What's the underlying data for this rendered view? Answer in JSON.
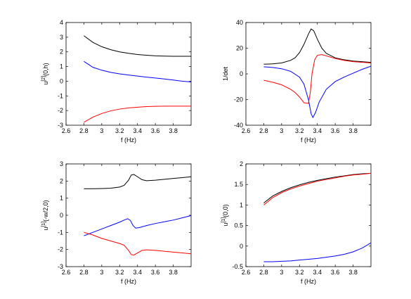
{
  "chart_data": [
    {
      "type": "line",
      "xlabel": "f (Hz)",
      "ylabel": "u^{[2]}(0,h)",
      "xlim": [
        2.6,
        4.0
      ],
      "ylim": [
        -3,
        4
      ],
      "xticks": [
        "2.6",
        "2.8",
        "3",
        "3.2",
        "3.4",
        "3.6",
        "3.8"
      ],
      "yticks": [
        "-3",
        "-2",
        "-1",
        "0",
        "1",
        "2",
        "3",
        "4"
      ],
      "series": [
        {
          "color": "#000000",
          "x": [
            2.8,
            2.9,
            3.0,
            3.1,
            3.2,
            3.3,
            3.4,
            3.5,
            3.6,
            3.7,
            3.8,
            3.9,
            4.0
          ],
          "y": [
            3.1,
            2.65,
            2.35,
            2.15,
            2.0,
            1.9,
            1.82,
            1.77,
            1.73,
            1.71,
            1.7,
            1.7,
            1.7
          ]
        },
        {
          "color": "#0000ff",
          "x": [
            2.8,
            2.9,
            3.0,
            3.1,
            3.2,
            3.3,
            3.4,
            3.5,
            3.6,
            3.7,
            3.8,
            3.9,
            4.0
          ],
          "y": [
            1.35,
            0.95,
            0.75,
            0.6,
            0.5,
            0.42,
            0.35,
            0.28,
            0.22,
            0.15,
            0.08,
            0.0,
            -0.05
          ]
        },
        {
          "color": "#ff0000",
          "x": [
            2.8,
            2.9,
            3.0,
            3.1,
            3.2,
            3.3,
            3.4,
            3.5,
            3.6,
            3.7,
            3.8,
            3.9,
            4.0
          ],
          "y": [
            -2.8,
            -2.45,
            -2.2,
            -2.02,
            -1.9,
            -1.82,
            -1.77,
            -1.73,
            -1.71,
            -1.7,
            -1.7,
            -1.7,
            -1.7
          ]
        }
      ]
    },
    {
      "type": "line",
      "xlabel": "f (Hz)",
      "ylabel": "1/det",
      "xlim": [
        2.6,
        4.0
      ],
      "ylim": [
        -40,
        40
      ],
      "xticks": [
        "2.6",
        "2.8",
        "3",
        "3.2",
        "3.4",
        "3.6",
        "3.8"
      ],
      "yticks": [
        "-40",
        "-20",
        "0",
        "20",
        "40"
      ],
      "series": [
        {
          "color": "#000000",
          "x": [
            2.8,
            2.9,
            3.0,
            3.1,
            3.15,
            3.2,
            3.25,
            3.3,
            3.33,
            3.36,
            3.4,
            3.45,
            3.5,
            3.6,
            3.7,
            3.8,
            4.0
          ],
          "y": [
            7.5,
            7.8,
            8.5,
            10.5,
            12.5,
            16.5,
            23.0,
            31.0,
            35.0,
            33.5,
            27.0,
            20.0,
            16.0,
            12.5,
            11.0,
            10.0,
            9.0
          ]
        },
        {
          "color": "#0000ff",
          "x": [
            2.8,
            2.9,
            3.0,
            3.1,
            3.2,
            3.25,
            3.3,
            3.33,
            3.35,
            3.38,
            3.42,
            3.5,
            3.6,
            3.7,
            3.8,
            3.9,
            4.0
          ],
          "y": [
            5.5,
            5.0,
            4.0,
            2.0,
            -2.5,
            -8.0,
            -20.0,
            -31.0,
            -34.0,
            -30.0,
            -22.0,
            -12.0,
            -6.0,
            -2.5,
            0.5,
            3.5,
            6.0
          ]
        },
        {
          "color": "#ff0000",
          "x": [
            2.8,
            2.9,
            3.0,
            3.1,
            3.15,
            3.2,
            3.25,
            3.3,
            3.32,
            3.34,
            3.37,
            3.4,
            3.45,
            3.5,
            3.6,
            3.7,
            3.8,
            4.0
          ],
          "y": [
            -5.0,
            -6.5,
            -8.5,
            -12.0,
            -14.5,
            -18.0,
            -22.5,
            -23.0,
            -15.0,
            0.0,
            11.0,
            14.5,
            15.0,
            14.0,
            12.0,
            10.5,
            9.5,
            8.5
          ]
        }
      ]
    },
    {
      "type": "line",
      "xlabel": "f (Hz)",
      "ylabel": "u^{[1]}(-w/2,0)",
      "xlim": [
        2.6,
        4.0
      ],
      "ylim": [
        -3,
        3
      ],
      "xticks": [
        "2.6",
        "2.8",
        "3",
        "3.2",
        "3.4",
        "3.6",
        "3.8"
      ],
      "yticks": [
        "-3",
        "-2",
        "-1",
        "0",
        "1",
        "2",
        "3"
      ],
      "series": [
        {
          "color": "#000000",
          "x": [
            2.8,
            2.9,
            3.0,
            3.1,
            3.2,
            3.25,
            3.3,
            3.33,
            3.36,
            3.4,
            3.45,
            3.5,
            3.6,
            3.7,
            3.8,
            3.9,
            4.0
          ],
          "y": [
            1.55,
            1.55,
            1.56,
            1.58,
            1.65,
            1.75,
            2.05,
            2.35,
            2.38,
            2.25,
            2.08,
            2.02,
            2.05,
            2.1,
            2.15,
            2.2,
            2.25
          ]
        },
        {
          "color": "#0000ff",
          "x": [
            2.8,
            2.9,
            3.0,
            3.1,
            3.2,
            3.25,
            3.29,
            3.32,
            3.35,
            3.38,
            3.42,
            3.5,
            3.6,
            3.7,
            3.8,
            3.9,
            4.0
          ],
          "y": [
            -1.2,
            -1.0,
            -0.8,
            -0.6,
            -0.4,
            -0.28,
            -0.2,
            -0.3,
            -0.6,
            -0.75,
            -0.72,
            -0.6,
            -0.48,
            -0.38,
            -0.28,
            -0.15,
            -0.02
          ]
        },
        {
          "color": "#ff0000",
          "x": [
            2.8,
            2.9,
            3.0,
            3.1,
            3.2,
            3.25,
            3.3,
            3.33,
            3.36,
            3.4,
            3.45,
            3.5,
            3.6,
            3.7,
            3.8,
            3.9,
            4.0
          ],
          "y": [
            -1.0,
            -1.15,
            -1.35,
            -1.5,
            -1.65,
            -1.75,
            -2.05,
            -2.3,
            -2.32,
            -2.2,
            -2.05,
            -2.02,
            -2.05,
            -2.1,
            -2.15,
            -2.2,
            -2.25
          ]
        }
      ]
    },
    {
      "type": "line",
      "xlabel": "f (Hz)",
      "ylabel": "u^{[1]}(0,0)",
      "xlim": [
        2.6,
        4.0
      ],
      "ylim": [
        -0.5,
        2
      ],
      "xticks": [
        "2.6",
        "2.8",
        "3",
        "3.2",
        "3.4",
        "3.6",
        "3.8"
      ],
      "yticks": [
        "-0.5",
        "0",
        "0.5",
        "1",
        "1.5",
        "2"
      ],
      "series": [
        {
          "color": "#000000",
          "x": [
            2.8,
            2.9,
            3.0,
            3.1,
            3.2,
            3.3,
            3.4,
            3.5,
            3.6,
            3.7,
            3.8,
            3.9,
            4.0
          ],
          "y": [
            1.05,
            1.22,
            1.33,
            1.42,
            1.49,
            1.55,
            1.6,
            1.64,
            1.68,
            1.71,
            1.74,
            1.76,
            1.77
          ]
        },
        {
          "color": "#ff0000",
          "x": [
            2.8,
            2.9,
            3.0,
            3.1,
            3.2,
            3.3,
            3.4,
            3.5,
            3.6,
            3.7,
            3.8,
            3.9,
            4.0
          ],
          "y": [
            1.0,
            1.18,
            1.3,
            1.39,
            1.46,
            1.52,
            1.58,
            1.62,
            1.66,
            1.7,
            1.73,
            1.75,
            1.77
          ]
        },
        {
          "color": "#0000ff",
          "x": [
            2.8,
            2.9,
            3.0,
            3.1,
            3.2,
            3.3,
            3.4,
            3.5,
            3.6,
            3.7,
            3.8,
            3.9,
            4.0
          ],
          "y": [
            -0.38,
            -0.38,
            -0.37,
            -0.36,
            -0.34,
            -0.32,
            -0.3,
            -0.27,
            -0.24,
            -0.2,
            -0.14,
            -0.05,
            0.08
          ]
        }
      ]
    }
  ]
}
